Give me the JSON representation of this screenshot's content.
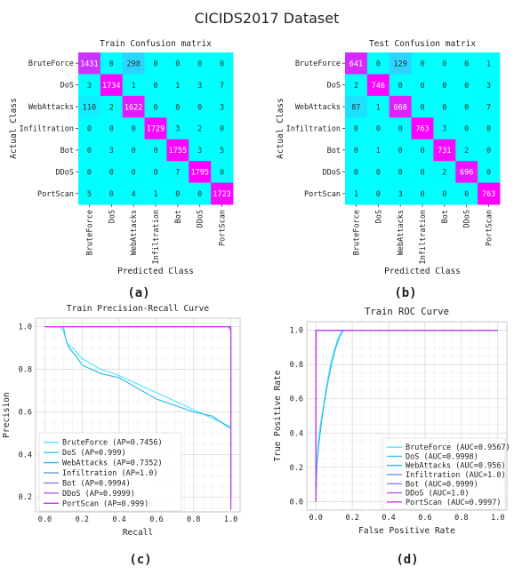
{
  "figure": {
    "title": "CICIDS2017 Dataset",
    "panel_labels": [
      "(a)",
      "(b)",
      "(c)",
      "(d)"
    ]
  },
  "colors": {
    "cm_low": "#00ffff",
    "cm_high": "#ff00ff",
    "cm_text_light": "#ffffff",
    "cm_text_dark": "#333333",
    "series": [
      "#4de6ff",
      "#33ccf2",
      "#29b8e6",
      "#6fa0e8",
      "#9a78e8",
      "#b656ea",
      "#cc33ee"
    ]
  },
  "chart_data": [
    {
      "type": "heatmap",
      "title": "Train Confusion matrix",
      "xlabel": "Predicted Class",
      "ylabel": "Actual Class",
      "classes": [
        "BruteForce",
        "DoS",
        "WebAttacks",
        "Infiltration",
        "Bot",
        "DDoS",
        "PortScan"
      ],
      "values": [
        [
          1431,
          0,
          298,
          0,
          0,
          0,
          0
        ],
        [
          3,
          1734,
          1,
          0,
          1,
          3,
          7
        ],
        [
          110,
          2,
          1622,
          0,
          0,
          0,
          3
        ],
        [
          0,
          0,
          0,
          1729,
          3,
          2,
          0
        ],
        [
          0,
          3,
          0,
          0,
          1755,
          3,
          5
        ],
        [
          0,
          0,
          0,
          0,
          7,
          1795,
          0
        ],
        [
          5,
          0,
          4,
          1,
          0,
          0,
          1723
        ]
      ]
    },
    {
      "type": "heatmap",
      "title": "Test Confusion matrix",
      "xlabel": "Predicted Class",
      "ylabel": "Actual Class",
      "classes": [
        "BruteForce",
        "DoS",
        "WebAttacks",
        "Infiltration",
        "Bot",
        "DDoS",
        "PortScan"
      ],
      "values": [
        [
          641,
          0,
          129,
          0,
          0,
          0,
          1
        ],
        [
          2,
          746,
          0,
          0,
          0,
          0,
          3
        ],
        [
          87,
          1,
          668,
          0,
          0,
          0,
          7
        ],
        [
          0,
          0,
          0,
          763,
          3,
          0,
          0
        ],
        [
          0,
          1,
          0,
          0,
          731,
          2,
          0
        ],
        [
          0,
          0,
          0,
          0,
          2,
          696,
          0
        ],
        [
          1,
          0,
          3,
          0,
          0,
          0,
          763
        ]
      ]
    },
    {
      "type": "line",
      "title": "Train Precision-Recall Curve",
      "xlabel": "Recall",
      "ylabel": "Precision",
      "xlim": [
        -0.05,
        1.05
      ],
      "ylim": [
        0.13,
        1.04
      ],
      "xticks": [
        "0.0",
        "0.2",
        "0.4",
        "0.6",
        "0.8",
        "1.0"
      ],
      "yticks": [
        "0.2",
        "0.4",
        "0.6",
        "0.8",
        "1.0"
      ],
      "grid": true,
      "legend_position": "lower-left",
      "series": [
        {
          "name": "BruteForce (AP=0.7456)",
          "points": [
            [
              0,
              1.0
            ],
            [
              0.08,
              1.0
            ],
            [
              0.1,
              0.98
            ],
            [
              0.12,
              0.92
            ],
            [
              0.15,
              0.9
            ],
            [
              0.2,
              0.85
            ],
            [
              0.3,
              0.8
            ],
            [
              0.4,
              0.77
            ],
            [
              0.5,
              0.73
            ],
            [
              0.6,
              0.69
            ],
            [
              0.7,
              0.65
            ],
            [
              0.8,
              0.61
            ],
            [
              0.9,
              0.57
            ],
            [
              0.95,
              0.55
            ],
            [
              1.0,
              0.53
            ]
          ]
        },
        {
          "name": "DoS (AP=0.999)",
          "points": [
            [
              0,
              1.0
            ],
            [
              0.99,
              1.0
            ],
            [
              1.0,
              0.996
            ],
            [
              1.0,
              0.2
            ]
          ]
        },
        {
          "name": "WebAttacks (AP=0.7352)",
          "points": [
            [
              0,
              1.0
            ],
            [
              0.1,
              1.0
            ],
            [
              0.11,
              0.95
            ],
            [
              0.13,
              0.9
            ],
            [
              0.17,
              0.86
            ],
            [
              0.2,
              0.82
            ],
            [
              0.3,
              0.78
            ],
            [
              0.4,
              0.76
            ],
            [
              0.5,
              0.71
            ],
            [
              0.6,
              0.66
            ],
            [
              0.7,
              0.63
            ],
            [
              0.8,
              0.6
            ],
            [
              0.9,
              0.58
            ],
            [
              0.95,
              0.55
            ],
            [
              1.0,
              0.52
            ]
          ]
        },
        {
          "name": "Infiltration (AP=1.0)",
          "points": [
            [
              0,
              1.0
            ],
            [
              1.0,
              1.0
            ],
            [
              1.0,
              0.2
            ]
          ]
        },
        {
          "name": "Bot (AP=0.9994)",
          "points": [
            [
              0,
              1.0
            ],
            [
              0.995,
              1.0
            ],
            [
              1.0,
              0.99
            ],
            [
              1.0,
              0.18
            ]
          ]
        },
        {
          "name": "DDoS (AP=0.9999)",
          "points": [
            [
              0,
              1.0
            ],
            [
              0.998,
              1.0
            ],
            [
              1.0,
              0.995
            ],
            [
              1.0,
              0.16
            ]
          ]
        },
        {
          "name": "PortScan (AP=0.999)",
          "points": [
            [
              0,
              1.0
            ],
            [
              0.99,
              1.0
            ],
            [
              0.995,
              0.99
            ],
            [
              1.0,
              0.98
            ],
            [
              1.0,
              0.14
            ]
          ]
        }
      ]
    },
    {
      "type": "line",
      "title": "Train ROC Curve",
      "xlabel": "False Positive Rate",
      "ylabel": "True Positive Rate",
      "xlim": [
        -0.05,
        1.05
      ],
      "ylim": [
        -0.05,
        1.05
      ],
      "xticks": [
        "0.0",
        "0.2",
        "0.4",
        "0.6",
        "0.8",
        "1.0"
      ],
      "yticks": [
        "0.0",
        "0.2",
        "0.4",
        "0.6",
        "0.8",
        "1.0"
      ],
      "grid": true,
      "legend_position": "lower-right",
      "series": [
        {
          "name": "BruteForce (AUC=0.9567)",
          "points": [
            [
              0,
              0
            ],
            [
              0.005,
              0.2
            ],
            [
              0.01,
              0.3
            ],
            [
              0.02,
              0.42
            ],
            [
              0.04,
              0.55
            ],
            [
              0.06,
              0.68
            ],
            [
              0.08,
              0.8
            ],
            [
              0.1,
              0.88
            ],
            [
              0.12,
              0.95
            ],
            [
              0.14,
              0.99
            ],
            [
              0.16,
              1.0
            ],
            [
              1.0,
              1.0
            ]
          ]
        },
        {
          "name": "DoS (AUC=0.9998)",
          "points": [
            [
              0,
              0
            ],
            [
              0.001,
              0.995
            ],
            [
              0.01,
              1.0
            ],
            [
              1.0,
              1.0
            ]
          ]
        },
        {
          "name": "WebAttacks (AUC=0.956)",
          "points": [
            [
              0,
              0
            ],
            [
              0.005,
              0.2
            ],
            [
              0.015,
              0.32
            ],
            [
              0.03,
              0.46
            ],
            [
              0.05,
              0.6
            ],
            [
              0.07,
              0.72
            ],
            [
              0.09,
              0.82
            ],
            [
              0.11,
              0.9
            ],
            [
              0.13,
              0.96
            ],
            [
              0.15,
              1.0
            ],
            [
              1.0,
              1.0
            ]
          ]
        },
        {
          "name": "Infiltration (AUC=1.0)",
          "points": [
            [
              0,
              0
            ],
            [
              0,
              1.0
            ],
            [
              1.0,
              1.0
            ]
          ]
        },
        {
          "name": "Bot (AUC=0.9999)",
          "points": [
            [
              0,
              0
            ],
            [
              0.001,
              1.0
            ],
            [
              1.0,
              1.0
            ]
          ]
        },
        {
          "name": "DDoS (AUC=1.0)",
          "points": [
            [
              0,
              0
            ],
            [
              0,
              1.0
            ],
            [
              1.0,
              1.0
            ]
          ]
        },
        {
          "name": "PortScan (AUC=0.9997)",
          "points": [
            [
              0,
              0
            ],
            [
              0.002,
              0.996
            ],
            [
              0.01,
              1.0
            ],
            [
              1.0,
              1.0
            ]
          ]
        }
      ]
    }
  ]
}
